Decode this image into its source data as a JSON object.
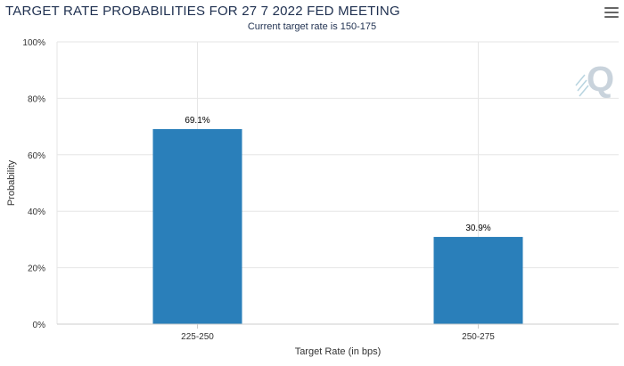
{
  "header": {
    "title": "TARGET RATE PROBABILITIES FOR 27 7 2022 FED MEETING",
    "subtitle": "Current target rate is 150-175"
  },
  "toolbar": {
    "menu_icon": "hamburger-menu-icon"
  },
  "watermark": {
    "letter": "Q",
    "icon": "quikstrike-logo-icon"
  },
  "colors": {
    "bar": "#2a7fba",
    "grid": "#e6e6e6",
    "axis": "#cccccc",
    "text": "#333333",
    "title": "#1f3050"
  },
  "chart_data": {
    "type": "bar",
    "categories": [
      "225-250",
      "250-275"
    ],
    "values": [
      69.1,
      30.9
    ],
    "data_labels": [
      "69.1%",
      "30.9%"
    ],
    "title": "TARGET RATE PROBABILITIES FOR 27 7 2022 FED MEETING",
    "subtitle": "Current target rate is 150-175",
    "xlabel": "Target Rate (in bps)",
    "ylabel": "Probability",
    "ylim": [
      0,
      100
    ],
    "yticks": [
      0,
      20,
      40,
      60,
      80,
      100
    ],
    "ytick_labels": [
      "0%",
      "20%",
      "40%",
      "60%",
      "80%",
      "100%"
    ],
    "grid": true,
    "legend": "none"
  }
}
